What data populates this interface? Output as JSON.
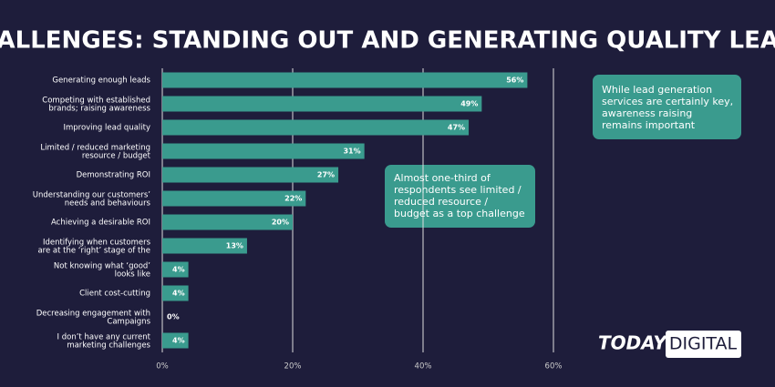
{
  "chart_data": {
    "type": "hbar",
    "title": "CHALLENGES: STANDING OUT AND GENERATING QUALITY LEADS",
    "categories": [
      "Generating enough leads",
      "Competing with established\nbrands; raising awareness",
      "Improving lead quality",
      "Limited / reduced marketing\nresource / budget",
      "Demonstrating ROI",
      "Understanding our customers’\nneeds and behaviours",
      "Achieving a desirable ROI",
      "Identifying when customers\nare at the ‘right’ stage of the",
      "Not knowing what ‘good’\nlooks like",
      "Client cost-cutting",
      "Decreasing engagement with\nCampaigns",
      "I don’t have any current\nmarketing challenges"
    ],
    "values": [
      56,
      49,
      47,
      31,
      27,
      22,
      20,
      13,
      4,
      4,
      0,
      4
    ],
    "value_labels": [
      "56%",
      "49%",
      "47%",
      "31%",
      "27%",
      "22%",
      "20%",
      "13%",
      "4%",
      "4%",
      "0%",
      "4%"
    ],
    "color": "#3a9b8e",
    "xlim": [
      0,
      60
    ],
    "xticks": [
      {
        "value": 0,
        "label": "0%"
      },
      {
        "value": 20,
        "label": "20%"
      },
      {
        "value": 40,
        "label": "40%"
      },
      {
        "value": 60,
        "label": "60%"
      }
    ],
    "grid": true,
    "annotations": [
      {
        "lines": [
          "While lead generation",
          "services are certainly key,",
          "awareness raising",
          "remains important"
        ]
      },
      {
        "lines": [
          "Almost one-third of",
          "respondents see limited /",
          "reduced resource /",
          "budget as a top challenge"
        ]
      }
    ]
  },
  "logo": {
    "left": "TODAY",
    "right": "DIGITAL"
  }
}
